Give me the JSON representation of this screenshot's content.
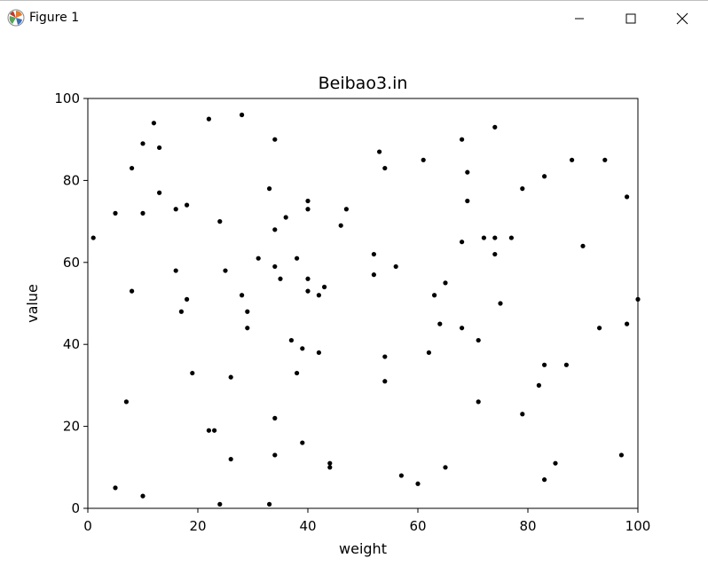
{
  "window": {
    "title": "Figure 1",
    "icons": {
      "app": "matplotlib-icon",
      "minimize": "minimize-icon",
      "maximize": "maximize-icon",
      "close": "close-icon"
    }
  },
  "chart_data": {
    "type": "scatter",
    "title": "Beibao3.in",
    "xlabel": "weight",
    "ylabel": "value",
    "xlim": [
      0,
      100
    ],
    "ylim": [
      0,
      100
    ],
    "xticks": [
      0,
      20,
      40,
      60,
      80,
      100
    ],
    "yticks": [
      0,
      20,
      40,
      60,
      80,
      100
    ],
    "grid": false,
    "marker_color": "#000000",
    "points": [
      [
        1,
        66
      ],
      [
        5,
        72
      ],
      [
        5,
        5
      ],
      [
        7,
        26
      ],
      [
        8,
        83
      ],
      [
        8,
        53
      ],
      [
        10,
        89
      ],
      [
        10,
        72
      ],
      [
        10,
        3
      ],
      [
        12,
        94
      ],
      [
        13,
        88
      ],
      [
        13,
        77
      ],
      [
        16,
        73
      ],
      [
        16,
        58
      ],
      [
        17,
        48
      ],
      [
        18,
        74
      ],
      [
        18,
        51
      ],
      [
        19,
        33
      ],
      [
        22,
        95
      ],
      [
        22,
        19
      ],
      [
        23,
        19
      ],
      [
        24,
        70
      ],
      [
        24,
        1
      ],
      [
        25,
        58
      ],
      [
        26,
        32
      ],
      [
        26,
        12
      ],
      [
        28,
        96
      ],
      [
        28,
        52
      ],
      [
        29,
        48
      ],
      [
        29,
        44
      ],
      [
        31,
        61
      ],
      [
        33,
        78
      ],
      [
        33,
        1
      ],
      [
        34,
        90
      ],
      [
        34,
        68
      ],
      [
        34,
        59
      ],
      [
        34,
        22
      ],
      [
        34,
        13
      ],
      [
        35,
        56
      ],
      [
        36,
        71
      ],
      [
        37,
        41
      ],
      [
        38,
        61
      ],
      [
        38,
        33
      ],
      [
        39,
        39
      ],
      [
        39,
        16
      ],
      [
        40,
        75
      ],
      [
        40,
        73
      ],
      [
        40,
        56
      ],
      [
        40,
        53
      ],
      [
        42,
        52
      ],
      [
        42,
        38
      ],
      [
        43,
        54
      ],
      [
        44,
        11
      ],
      [
        44,
        10
      ],
      [
        46,
        69
      ],
      [
        47,
        73
      ],
      [
        52,
        62
      ],
      [
        52,
        57
      ],
      [
        53,
        87
      ],
      [
        54,
        83
      ],
      [
        54,
        37
      ],
      [
        54,
        31
      ],
      [
        56,
        59
      ],
      [
        57,
        8
      ],
      [
        60,
        6
      ],
      [
        61,
        85
      ],
      [
        62,
        38
      ],
      [
        63,
        52
      ],
      [
        64,
        45
      ],
      [
        65,
        55
      ],
      [
        65,
        10
      ],
      [
        68,
        90
      ],
      [
        68,
        65
      ],
      [
        68,
        44
      ],
      [
        69,
        82
      ],
      [
        69,
        75
      ],
      [
        71,
        41
      ],
      [
        71,
        26
      ],
      [
        72,
        66
      ],
      [
        74,
        93
      ],
      [
        74,
        66
      ],
      [
        74,
        62
      ],
      [
        75,
        50
      ],
      [
        77,
        66
      ],
      [
        79,
        78
      ],
      [
        79,
        23
      ],
      [
        82,
        30
      ],
      [
        83,
        81
      ],
      [
        83,
        35
      ],
      [
        83,
        7
      ],
      [
        85,
        11
      ],
      [
        87,
        35
      ],
      [
        88,
        85
      ],
      [
        90,
        64
      ],
      [
        93,
        44
      ],
      [
        94,
        85
      ],
      [
        97,
        13
      ],
      [
        98,
        76
      ],
      [
        98,
        45
      ],
      [
        100,
        51
      ]
    ]
  }
}
